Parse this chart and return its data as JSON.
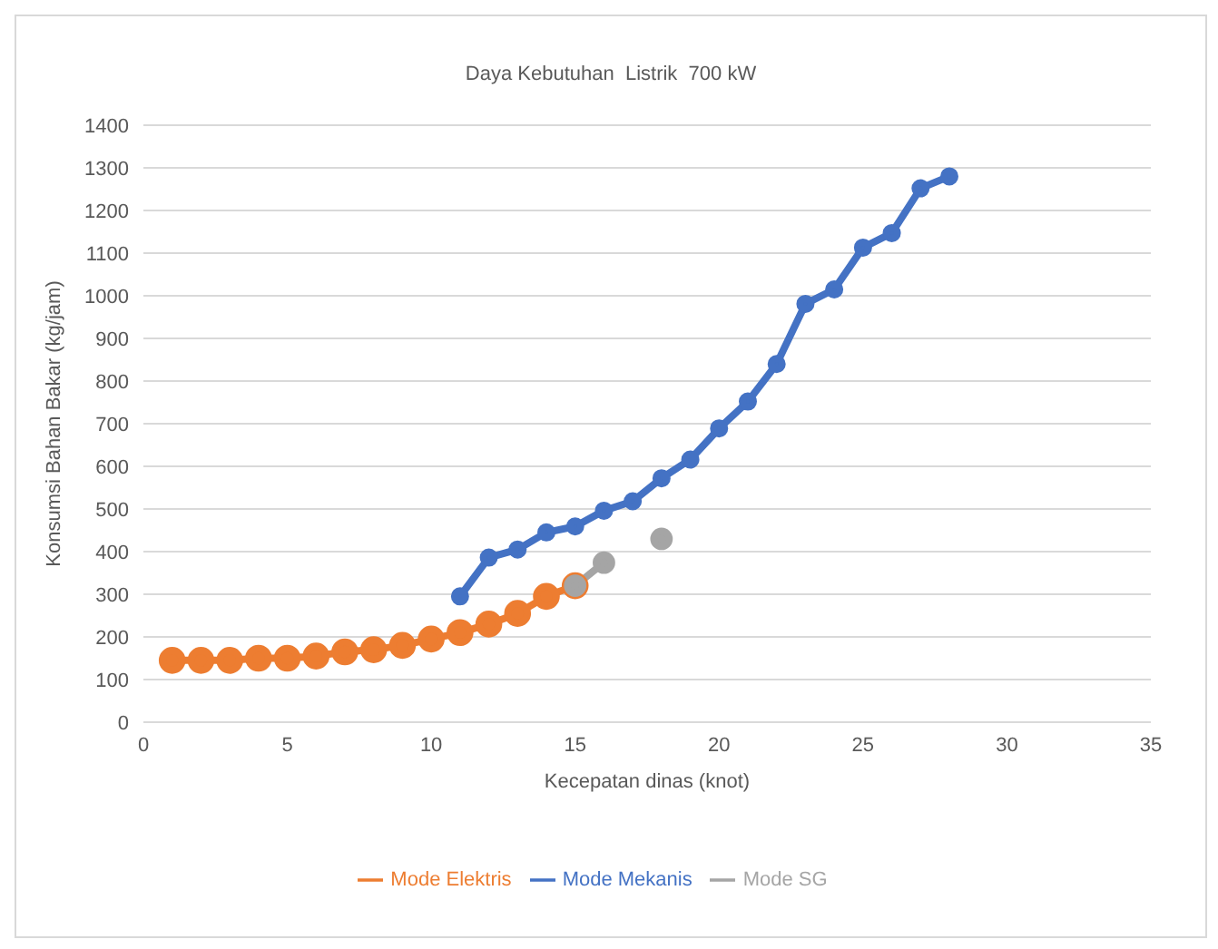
{
  "chart_data": {
    "type": "line",
    "title": "Daya Kebutuhan  Listrik  700 kW",
    "xlabel": "Kecepatan  dinas  (knot)",
    "ylabel": "Konsumsi  Bahan  Bakar  (kg/jam)",
    "xlim": [
      0,
      35
    ],
    "xticks": [
      0,
      5,
      10,
      15,
      20,
      25,
      30,
      35
    ],
    "ylim": [
      0,
      1400
    ],
    "yticks": [
      0,
      100,
      200,
      300,
      400,
      500,
      600,
      700,
      800,
      900,
      1000,
      1100,
      1200,
      1300,
      1400
    ],
    "grid": "y",
    "legend": "bottom",
    "marker": "circle",
    "series": [
      {
        "name": "Mode Elektris",
        "color": "#ed7d31",
        "x": [
          1,
          2,
          3,
          4,
          5,
          6,
          7,
          8,
          9,
          10,
          11,
          12,
          13,
          14,
          15
        ],
        "values": [
          145,
          145,
          145,
          150,
          150,
          155,
          165,
          170,
          180,
          195,
          210,
          230,
          255,
          295,
          320
        ]
      },
      {
        "name": "Mode SG",
        "color": "#a5a5a5",
        "x": [
          15,
          16,
          17,
          18
        ],
        "values": [
          320,
          374,
          null,
          430
        ]
      },
      {
        "name": "Mode Mekanis",
        "color": "#4472c4",
        "x": [
          11,
          12,
          13,
          14,
          15,
          16,
          17,
          18,
          19,
          20,
          21,
          22,
          23,
          24,
          25,
          26,
          27,
          28
        ],
        "values": [
          295,
          386,
          405,
          445,
          459,
          496,
          518,
          572,
          616,
          689,
          752,
          840,
          981,
          1015,
          1113,
          1147,
          1252,
          1280
        ]
      }
    ]
  }
}
